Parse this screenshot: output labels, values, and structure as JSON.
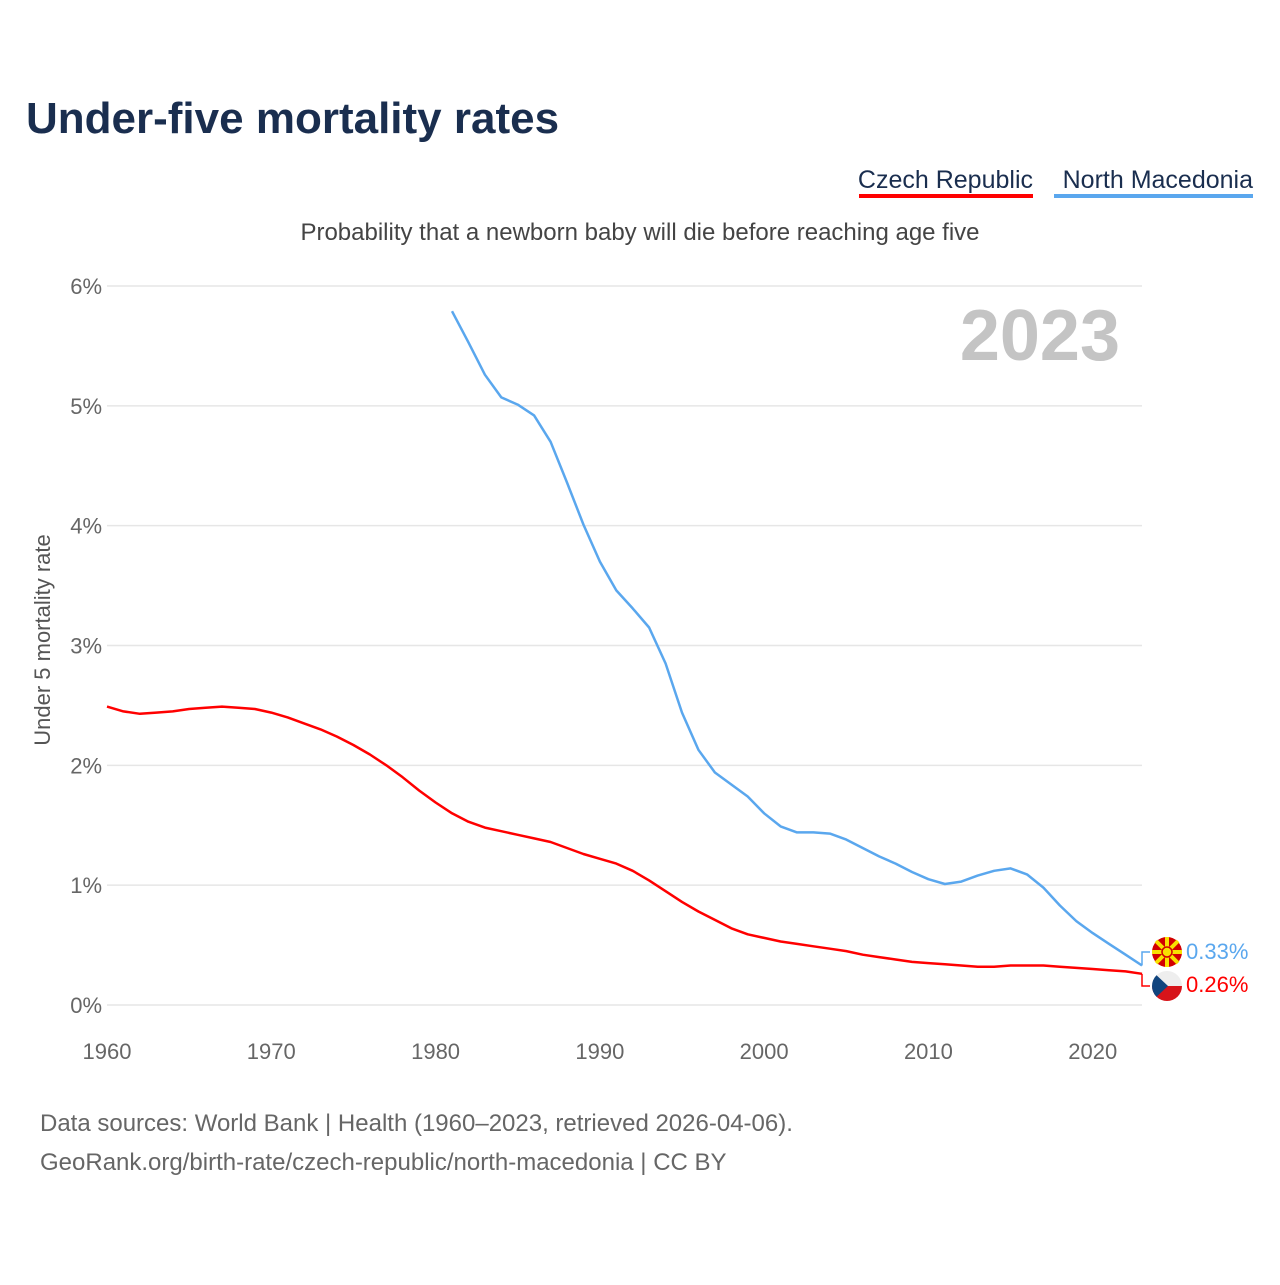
{
  "chart_data": {
    "type": "line",
    "title": "Under-five mortality rates",
    "subtitle": "Probability that a newborn baby will die before reaching age five",
    "ylabel": "Under 5 mortality rate",
    "xlabel": "",
    "year_label": "2023",
    "xlim": [
      1960,
      2023
    ],
    "ylim": [
      0,
      6
    ],
    "x_ticks": [
      1960,
      1970,
      1980,
      1990,
      2000,
      2010,
      2020
    ],
    "y_ticks": [
      0,
      1,
      2,
      3,
      4,
      5,
      6
    ],
    "y_tick_labels": [
      "0%",
      "1%",
      "2%",
      "3%",
      "4%",
      "5%",
      "6%"
    ],
    "grid": true,
    "legend_position": "top-right",
    "series": [
      {
        "name": "Czech Republic",
        "color": "#ff0000",
        "start_year": 1960,
        "end_label": "0.26%",
        "values": [
          2.49,
          2.45,
          2.43,
          2.44,
          2.45,
          2.47,
          2.48,
          2.49,
          2.48,
          2.47,
          2.44,
          2.4,
          2.35,
          2.3,
          2.24,
          2.17,
          2.09,
          2.0,
          1.9,
          1.79,
          1.69,
          1.6,
          1.53,
          1.48,
          1.45,
          1.42,
          1.39,
          1.36,
          1.31,
          1.26,
          1.22,
          1.18,
          1.12,
          1.04,
          0.95,
          0.86,
          0.78,
          0.71,
          0.64,
          0.59,
          0.56,
          0.53,
          0.51,
          0.49,
          0.47,
          0.45,
          0.42,
          0.4,
          0.38,
          0.36,
          0.35,
          0.34,
          0.33,
          0.32,
          0.32,
          0.33,
          0.33,
          0.33,
          0.32,
          0.31,
          0.3,
          0.29,
          0.28,
          0.26
        ]
      },
      {
        "name": "North Macedonia",
        "color": "#5aa7ee",
        "start_year": 1981,
        "end_label": "0.33%",
        "values": [
          5.79,
          5.53,
          5.26,
          5.07,
          5.01,
          4.92,
          4.7,
          4.36,
          4.01,
          3.7,
          3.46,
          3.31,
          3.15,
          2.85,
          2.44,
          2.13,
          1.94,
          1.84,
          1.74,
          1.6,
          1.49,
          1.44,
          1.44,
          1.43,
          1.38,
          1.31,
          1.24,
          1.18,
          1.11,
          1.05,
          1.01,
          1.03,
          1.08,
          1.12,
          1.14,
          1.09,
          0.98,
          0.83,
          0.7,
          0.6,
          0.51,
          0.42,
          0.33
        ]
      }
    ]
  },
  "footer": {
    "line1": "Data sources: World Bank | Health (1960–2023, retrieved 2026-04-06).",
    "line2": "GeoRank.org/birth-rate/czech-republic/north-macedonia | CC BY"
  }
}
